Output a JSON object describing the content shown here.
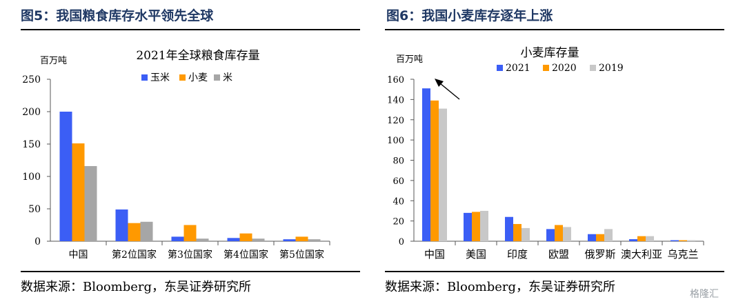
{
  "panels": [
    {
      "title": "图5：我国粮食库存水平领先全球",
      "source": "数据来源：Bloomberg，东吴证券研究所"
    },
    {
      "title": "图6：我国小麦库存逐年上涨",
      "source": "数据来源：Bloomberg，东吴证券研究所"
    }
  ],
  "watermark": "格隆汇",
  "chart_data": [
    {
      "type": "bar",
      "title": "2021年全球粮食库存量",
      "unit_label": "百万吨",
      "categories": [
        "中国",
        "第2位国家",
        "第3位国家",
        "第4位国家",
        "第5位国家"
      ],
      "series": [
        {
          "name": "玉米",
          "color": "#3b5ef5",
          "values": [
            200,
            49,
            7,
            5,
            3
          ]
        },
        {
          "name": "小麦",
          "color": "#ff9900",
          "values": [
            151,
            28,
            25,
            12,
            7
          ]
        },
        {
          "name": "米",
          "color": "#a6a6a6",
          "values": [
            116,
            30,
            4,
            4,
            3
          ]
        }
      ],
      "ylim": [
        0,
        250
      ],
      "yticks": [
        0,
        50,
        100,
        150,
        200,
        250
      ],
      "legend": "top"
    },
    {
      "type": "bar",
      "title": "小麦库存量",
      "unit_label": "百万吨",
      "categories": [
        "中国",
        "美国",
        "印度",
        "欧盟",
        "俄罗斯",
        "澳大利亚",
        "乌克兰"
      ],
      "series": [
        {
          "name": "2021",
          "color": "#3b5ef5",
          "values": [
            151,
            28,
            24,
            12,
            7,
            2,
            1
          ]
        },
        {
          "name": "2020",
          "color": "#ff9900",
          "values": [
            139,
            29,
            17,
            16,
            7,
            5,
            1
          ]
        },
        {
          "name": "2019",
          "color": "#c8c8c8",
          "values": [
            131,
            30,
            13,
            14,
            12,
            5,
            1
          ]
        }
      ],
      "ylim": [
        0,
        160
      ],
      "yticks": [
        0,
        20,
        40,
        60,
        80,
        100,
        120,
        140,
        160
      ],
      "legend": "top",
      "annotation": "arrow-pointing-to-china"
    }
  ]
}
